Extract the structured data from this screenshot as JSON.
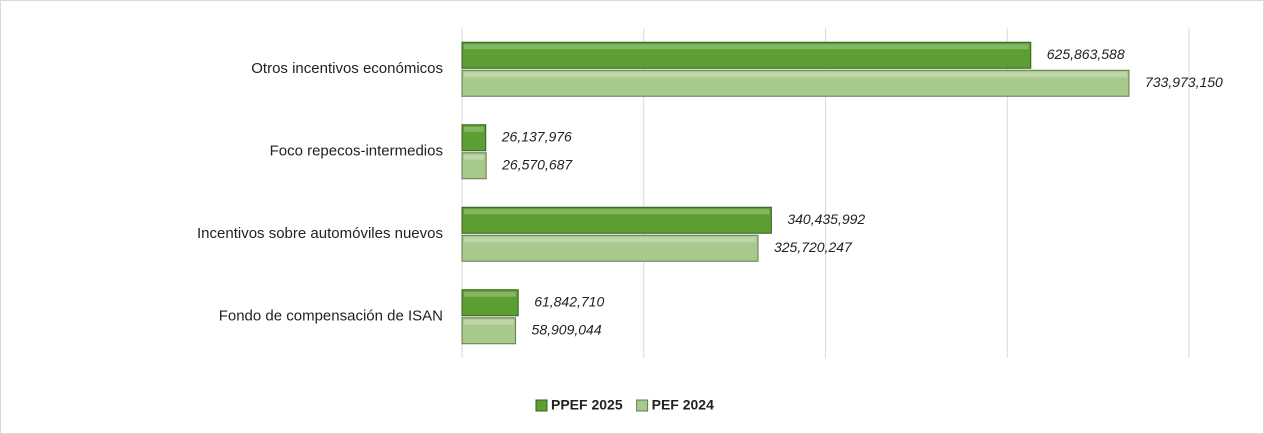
{
  "chart_data": {
    "type": "hbar",
    "categories": [
      "Otros incentivos económicos",
      "Foco repecos-intermedios",
      "Incentivos sobre automóviles nuevos",
      "Fondo de compensación de ISAN"
    ],
    "series": [
      {
        "name": "PPEF 2025",
        "color": "#5c9e31",
        "values": [
          625863588,
          26137976,
          340435992,
          61842710
        ],
        "value_labels": [
          "625,863,588",
          "26,137,976",
          "340,435,992",
          "61,842,710"
        ]
      },
      {
        "name": "PEF 2024",
        "color": "#a8c98c",
        "values": [
          733973150,
          26570687,
          325720247,
          58909044
        ],
        "value_labels": [
          "733,973,150",
          "26,570,687",
          "325,720,247",
          "58,909,044"
        ]
      }
    ],
    "xlim": [
      0,
      800000000
    ],
    "xticks": [
      0,
      200000000,
      400000000,
      600000000,
      800000000
    ],
    "grid": true,
    "legend": "bottom"
  }
}
